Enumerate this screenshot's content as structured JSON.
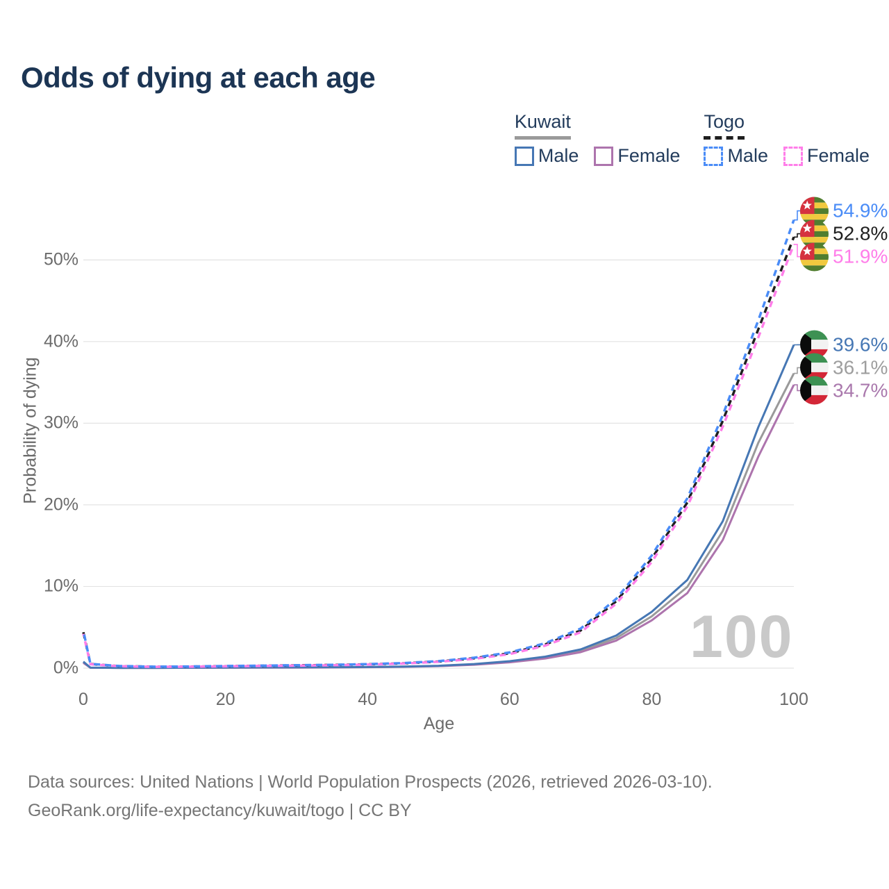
{
  "title": "Odds of dying at each age",
  "watermark": "100",
  "legend": {
    "groups": [
      {
        "country": "Kuwait",
        "underline_style": "solid",
        "underline_color": "#9a9a9a",
        "items": [
          {
            "label": "Male",
            "swatch_color": "#4677b4",
            "dashed": false
          },
          {
            "label": "Female",
            "swatch_color": "#ad74ad",
            "dashed": false
          }
        ]
      },
      {
        "country": "Togo",
        "underline_style": "dashed",
        "underline_color": "#1f1f1f",
        "items": [
          {
            "label": "Male",
            "swatch_color": "#4a8cf7",
            "dashed": true
          },
          {
            "label": "Female",
            "swatch_color": "#ff7ee9",
            "dashed": true
          }
        ]
      }
    ]
  },
  "axes": {
    "y_title": "Probability of dying",
    "x_title": "Age",
    "y_tick_labels": [
      "0%",
      "10%",
      "20%",
      "30%",
      "40%",
      "50%"
    ],
    "x_tick_labels": [
      "0",
      "20",
      "40",
      "60",
      "80",
      "100"
    ]
  },
  "end_label_clusters": [
    {
      "labels": [
        {
          "value": "54.9%",
          "color": "#4a8cf7",
          "flag": "togo-flag-icon",
          "series": "togo_male"
        },
        {
          "value": "52.8%",
          "color": "#1f1f1f",
          "flag": "togo-flag-icon",
          "series": "togo_both"
        },
        {
          "value": "51.9%",
          "color": "#ff7ee9",
          "flag": "togo-flag-icon",
          "series": "togo_female"
        }
      ]
    },
    {
      "labels": [
        {
          "value": "39.6%",
          "color": "#4677b4",
          "flag": "kuwait-flag-icon",
          "series": "kuwait_male"
        },
        {
          "value": "36.1%",
          "color": "#9e9e9e",
          "flag": "kuwait-flag-icon",
          "series": "kuwait_both"
        },
        {
          "value": "34.7%",
          "color": "#aa79ad",
          "flag": "kuwait-flag-icon",
          "series": "kuwait_female"
        }
      ]
    }
  ],
  "footer": {
    "line1": "Data sources: United Nations | World Population Prospects (2026, retrieved 2026-03-10).",
    "line2": "GeoRank.org/life-expectancy/kuwait/togo | CC BY"
  },
  "chart_data": {
    "type": "line",
    "title": "Odds of dying at each age",
    "xlabel": "Age",
    "ylabel": "Probability of dying",
    "xlim": [
      0,
      100
    ],
    "ylim_percent": [
      0,
      57
    ],
    "grid": true,
    "legend_position": "top-right",
    "x_ages": [
      0,
      1,
      5,
      10,
      15,
      20,
      25,
      30,
      35,
      40,
      45,
      50,
      55,
      60,
      65,
      70,
      75,
      80,
      85,
      90,
      95,
      100
    ],
    "y_ticks_percent": [
      0,
      10,
      20,
      30,
      40,
      50
    ],
    "x_ticks_ages": [
      0,
      20,
      40,
      60,
      80,
      100
    ],
    "series": [
      {
        "id": "kuwait_both",
        "name": "Kuwait Both sexes",
        "country": "Kuwait",
        "sex": "both",
        "color": "#9a9a9a",
        "dashed": false,
        "end_value_percent": 36.1,
        "values_percent": [
          0.72,
          0.055,
          0.032,
          0.032,
          0.045,
          0.065,
          0.075,
          0.088,
          0.1,
          0.128,
          0.18,
          0.265,
          0.455,
          0.78,
          1.28,
          2.12,
          3.68,
          6.35,
          9.95,
          16.8,
          27.6,
          36.1
        ]
      },
      {
        "id": "kuwait_female",
        "name": "Kuwait Female",
        "country": "Kuwait",
        "sex": "female",
        "color": "#ad74ad",
        "dashed": false,
        "end_value_percent": 34.7,
        "values_percent": [
          0.65,
          0.05,
          0.03,
          0.03,
          0.04,
          0.052,
          0.06,
          0.072,
          0.088,
          0.115,
          0.165,
          0.245,
          0.42,
          0.715,
          1.18,
          1.96,
          3.38,
          5.85,
          9.2,
          15.7,
          25.9,
          34.7
        ]
      },
      {
        "id": "kuwait_male",
        "name": "Kuwait Male",
        "country": "Kuwait",
        "sex": "male",
        "color": "#4677b4",
        "dashed": false,
        "end_value_percent": 39.6,
        "values_percent": [
          0.8,
          0.06,
          0.035,
          0.035,
          0.05,
          0.08,
          0.09,
          0.1,
          0.115,
          0.14,
          0.195,
          0.29,
          0.5,
          0.85,
          1.4,
          2.3,
          4.0,
          6.9,
          10.8,
          18.0,
          29.5,
          39.6
        ]
      },
      {
        "id": "togo_both",
        "name": "Togo Both sexes",
        "country": "Togo",
        "sex": "both",
        "color": "#1f1f1f",
        "dashed": true,
        "end_value_percent": 52.8,
        "values_percent": [
          4.4,
          0.5,
          0.25,
          0.17,
          0.19,
          0.24,
          0.29,
          0.34,
          0.39,
          0.46,
          0.59,
          0.81,
          1.21,
          1.82,
          2.9,
          4.62,
          8.2,
          13.4,
          20.3,
          30.3,
          41.5,
          52.8
        ]
      },
      {
        "id": "togo_female",
        "name": "Togo Female",
        "country": "Togo",
        "sex": "female",
        "color": "#ff7ee9",
        "dashed": true,
        "end_value_percent": 51.9,
        "values_percent": [
          4.2,
          0.48,
          0.24,
          0.16,
          0.18,
          0.22,
          0.27,
          0.31,
          0.36,
          0.43,
          0.56,
          0.77,
          1.14,
          1.72,
          2.76,
          4.4,
          7.9,
          13.0,
          19.8,
          29.6,
          40.5,
          51.9
        ]
      },
      {
        "id": "togo_male",
        "name": "Togo Male",
        "country": "Togo",
        "sex": "male",
        "color": "#4a8cf7",
        "dashed": true,
        "end_value_percent": 54.9,
        "values_percent": [
          4.6,
          0.52,
          0.26,
          0.18,
          0.2,
          0.26,
          0.31,
          0.36,
          0.41,
          0.49,
          0.62,
          0.86,
          1.28,
          1.92,
          3.05,
          4.85,
          8.5,
          13.8,
          20.8,
          31.0,
          42.6,
          54.9
        ]
      }
    ]
  }
}
